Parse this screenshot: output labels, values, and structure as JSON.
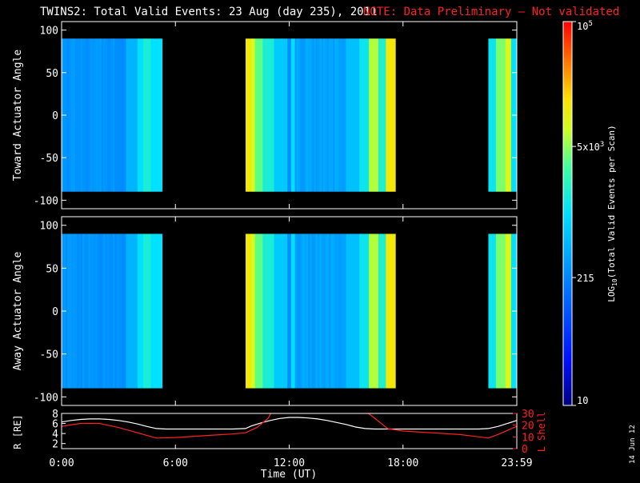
{
  "title": "TWINS2: Total Valid Events: 23 Aug (day 235), 2011",
  "note": "NOTE: Data Preliminary — Not validated",
  "date_stamp": "14 Jun 12",
  "colors": {
    "note": "#ff2020",
    "lshell": "#ff2020",
    "rdist": "#ffffff",
    "background": "#000000",
    "nodata": "#000000"
  },
  "chart_data": [
    {
      "type": "heatmap",
      "ylabel": "Toward Actuator Angle",
      "ylim": [
        -110,
        110
      ],
      "yticks": [
        100,
        50,
        0,
        -50,
        -100
      ],
      "xlim": [
        0,
        24
      ],
      "xticks": [
        "0:00",
        "6:00",
        "12:00",
        "18:00",
        "23:59"
      ],
      "data_y_range": [
        -90,
        90
      ],
      "time_blocks": [
        {
          "start": 0.0,
          "end": 5.3
        },
        {
          "start": 9.7,
          "end": 17.6
        },
        {
          "start": 22.5,
          "end": 24.0
        }
      ]
    },
    {
      "type": "heatmap",
      "ylabel": "Away Actuator Angle",
      "ylim": [
        -110,
        110
      ],
      "yticks": [
        100,
        50,
        0,
        -50,
        -100
      ],
      "xlim": [
        0,
        24
      ],
      "xticks": [
        "0:00",
        "6:00",
        "12:00",
        "18:00",
        "23:59"
      ],
      "data_y_range": [
        -90,
        90
      ],
      "time_blocks": [
        {
          "start": 0.0,
          "end": 5.3
        },
        {
          "start": 9.7,
          "end": 17.6
        },
        {
          "start": 22.5,
          "end": 24.0
        }
      ]
    },
    {
      "type": "line",
      "xlabel": "Time (UT)",
      "xlim": [
        0,
        24
      ],
      "xticks": [
        "0:00",
        "6:00",
        "12:00",
        "18:00",
        "23:59"
      ],
      "ylabel_left": "R [RE]",
      "ylim_left": [
        1,
        8
      ],
      "yticks_left": [
        2,
        4,
        6,
        8
      ],
      "ylabel_right": "L Shell",
      "ylim_right": [
        0,
        30
      ],
      "yticks_right": [
        0,
        10,
        20,
        30
      ],
      "series": [
        {
          "axis": "left",
          "x": [
            0,
            0.5,
            1,
            1.5,
            2,
            2.5,
            3,
            3.5,
            4,
            4.5,
            5,
            5.5,
            6,
            7,
            8,
            9,
            9.7,
            10,
            10.5,
            11,
            11.5,
            12,
            12.5,
            13,
            13.5,
            14,
            14.5,
            15,
            15.5,
            16,
            16.5,
            17,
            17.5,
            18,
            19,
            20,
            21,
            22,
            22.5,
            23,
            23.5,
            24
          ],
          "y": [
            6.3,
            6.6,
            6.8,
            6.9,
            6.9,
            6.8,
            6.6,
            6.3,
            5.9,
            5.4,
            5.0,
            4.9,
            4.9,
            4.9,
            4.9,
            4.9,
            5.0,
            5.5,
            6.1,
            6.6,
            7.0,
            7.2,
            7.2,
            7.1,
            6.9,
            6.6,
            6.2,
            5.8,
            5.3,
            5.0,
            4.9,
            4.9,
            4.9,
            4.9,
            4.9,
            4.9,
            4.9,
            4.9,
            5.0,
            5.4,
            6.0,
            6.6
          ]
        },
        {
          "axis": "right",
          "x": [
            0,
            1,
            2,
            3,
            4,
            5,
            6,
            7,
            8,
            9,
            9.7,
            10.3,
            10.9,
            11.05,
            16.1,
            16.5,
            17.2,
            18,
            19,
            20,
            21,
            22,
            22.5,
            23,
            24
          ],
          "y": [
            19,
            21.5,
            21.5,
            18,
            13.5,
            9,
            9.5,
            10.5,
            11.5,
            12.5,
            13.5,
            18,
            26,
            31,
            31,
            26,
            17,
            15,
            14,
            13,
            12,
            10,
            9,
            12,
            19
          ]
        }
      ]
    }
  ],
  "colorbar": {
    "label": "LOG10(Total Valid Events per Scan)",
    "label_main": "LOG",
    "label_sub": "10",
    "label_rest": "(Total Valid Events per Scan)",
    "ticks": [
      {
        "value": 10,
        "text": "10"
      },
      {
        "value": 215,
        "text": "215"
      },
      {
        "value": 5000,
        "text": "5x10",
        "sup": "3"
      },
      {
        "value": 100000,
        "text": "10",
        "sup": "5"
      }
    ],
    "range": [
      10,
      100000
    ],
    "scale": "log"
  }
}
